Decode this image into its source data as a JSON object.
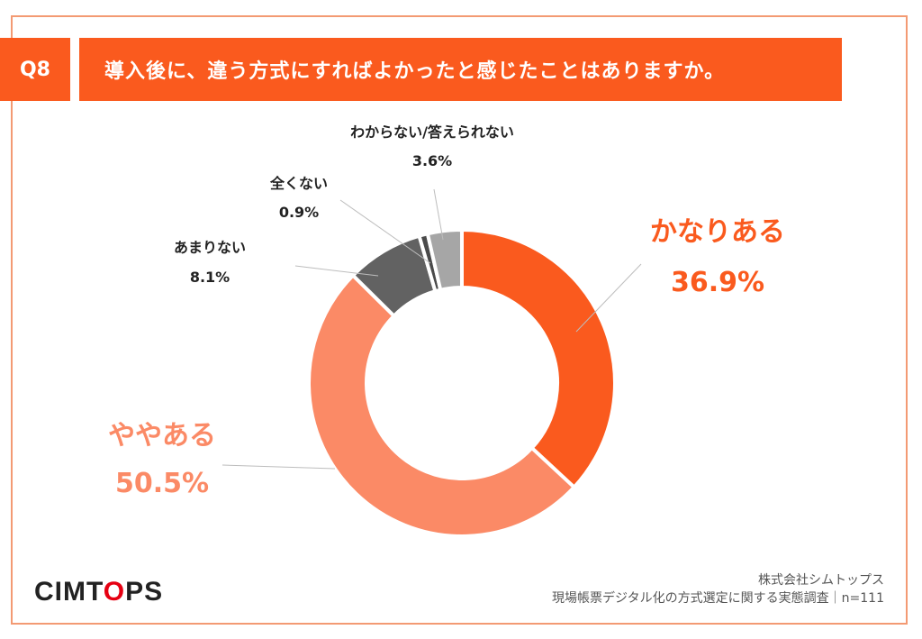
{
  "header": {
    "question_no": "Q8",
    "question": "導入後に、違う方式にすればよかったと感じたことはありますか。"
  },
  "chart_data": {
    "type": "pie",
    "donut": true,
    "title": "導入後に、違う方式にすればよかったと感じたことはありますか。",
    "categories": [
      "かなりある",
      "ややある",
      "あまりない",
      "全くない",
      "わからない/答えられない"
    ],
    "values": [
      36.9,
      50.5,
      8.1,
      0.9,
      3.6
    ],
    "value_labels": [
      "36.9%",
      "50.5%",
      "8.1%",
      "0.9%",
      "3.6%"
    ],
    "colors": [
      "#fa5a1e",
      "#fb8a66",
      "#626262",
      "#4a4a4a",
      "#a6a6a6"
    ]
  },
  "footer": {
    "logo_prefix": "CIMT",
    "logo_o": "O",
    "logo_suffix": "PS",
    "company": "株式会社シムトップス",
    "survey": "現場帳票デジタル化の方式選定に関する実態調査｜n=111"
  }
}
